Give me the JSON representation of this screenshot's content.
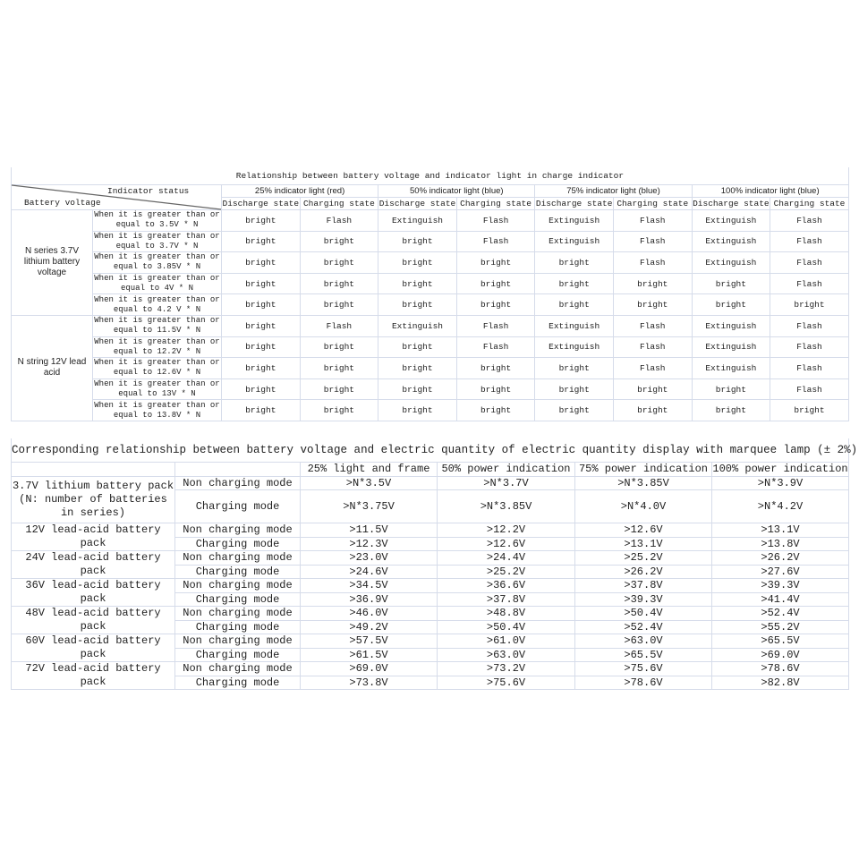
{
  "table1": {
    "title": "Relationship between battery voltage and indicator light in charge indicator",
    "corner_top": "Indicator status",
    "corner_bottom": "Battery voltage",
    "indicators": [
      "25% indicator light (red)",
      "50% indicator light (blue)",
      "75% indicator light (blue)",
      "100% indicator light (blue)"
    ],
    "states": [
      "Discharge state",
      "Charging state"
    ],
    "groups": [
      {
        "label": "N series 3.7V lithium battery voltage",
        "rows": [
          {
            "condition": "When it is greater than or equal to 3.5V * N",
            "values": [
              "bright",
              "Flash",
              "Extinguish",
              "Flash",
              "Extinguish",
              "Flash",
              "Extinguish",
              "Flash"
            ]
          },
          {
            "condition": "When it is greater than or equal to 3.7V * N",
            "values": [
              "bright",
              "bright",
              "bright",
              "Flash",
              "Extinguish",
              "Flash",
              "Extinguish",
              "Flash"
            ]
          },
          {
            "condition": "When it is greater than or equal to 3.85V * N",
            "values": [
              "bright",
              "bright",
              "bright",
              "bright",
              "bright",
              "Flash",
              "Extinguish",
              "Flash"
            ]
          },
          {
            "condition": "When it is greater than or equal to 4V * N",
            "values": [
              "bright",
              "bright",
              "bright",
              "bright",
              "bright",
              "bright",
              "bright",
              "Flash"
            ]
          },
          {
            "condition": "When it is greater than or equal to 4.2 V * N",
            "values": [
              "bright",
              "bright",
              "bright",
              "bright",
              "bright",
              "bright",
              "bright",
              "bright"
            ]
          }
        ]
      },
      {
        "label": "N string 12V lead acid",
        "rows": [
          {
            "condition": "When it is greater than or equal to 11.5V * N",
            "values": [
              "bright",
              "Flash",
              "Extinguish",
              "Flash",
              "Extinguish",
              "Flash",
              "Extinguish",
              "Flash"
            ]
          },
          {
            "condition": "When it is greater than or equal to 12.2V * N",
            "values": [
              "bright",
              "bright",
              "bright",
              "Flash",
              "Extinguish",
              "Flash",
              "Extinguish",
              "Flash"
            ]
          },
          {
            "condition": "When it is greater than or equal to 12.6V * N",
            "values": [
              "bright",
              "bright",
              "bright",
              "bright",
              "bright",
              "Flash",
              "Extinguish",
              "Flash"
            ]
          },
          {
            "condition": "When it is greater than or equal to 13V * N",
            "values": [
              "bright",
              "bright",
              "bright",
              "bright",
              "bright",
              "bright",
              "bright",
              "Flash"
            ]
          },
          {
            "condition": "When it is greater than or equal to 13.8V * N",
            "values": [
              "bright",
              "bright",
              "bright",
              "bright",
              "bright",
              "bright",
              "bright",
              "bright"
            ]
          }
        ]
      }
    ]
  },
  "table2": {
    "title": "Corresponding relationship between battery voltage and electric quantity of electric quantity display with marquee lamp (± 2%)",
    "headers": [
      "",
      "",
      "25% light and frame",
      "50% power indication",
      "75% power indication",
      "100% power indication"
    ],
    "groups": [
      {
        "label": "3.7V lithium battery pack (N: number of batteries in series)",
        "rows": [
          {
            "mode": "Non charging mode",
            "values": [
              ">N*3.5V",
              ">N*3.7V",
              ">N*3.85V",
              ">N*3.9V"
            ]
          },
          {
            "mode": "Charging mode",
            "values": [
              ">N*3.75V",
              ">N*3.85V",
              ">N*4.0V",
              ">N*4.2V"
            ]
          }
        ]
      },
      {
        "label": "12V lead-acid battery pack",
        "rows": [
          {
            "mode": "Non charging mode",
            "values": [
              ">11.5V",
              ">12.2V",
              ">12.6V",
              ">13.1V"
            ]
          },
          {
            "mode": "Charging mode",
            "values": [
              ">12.3V",
              ">12.6V",
              ">13.1V",
              ">13.8V"
            ]
          }
        ]
      },
      {
        "label": "24V lead-acid battery pack",
        "rows": [
          {
            "mode": "Non charging mode",
            "values": [
              ">23.0V",
              ">24.4V",
              ">25.2V",
              ">26.2V"
            ]
          },
          {
            "mode": "Charging mode",
            "values": [
              ">24.6V",
              ">25.2V",
              ">26.2V",
              ">27.6V"
            ]
          }
        ]
      },
      {
        "label": "36V lead-acid battery pack",
        "rows": [
          {
            "mode": "Non charging mode",
            "values": [
              ">34.5V",
              ">36.6V",
              ">37.8V",
              ">39.3V"
            ]
          },
          {
            "mode": "Charging mode",
            "values": [
              ">36.9V",
              ">37.8V",
              ">39.3V",
              ">41.4V"
            ]
          }
        ]
      },
      {
        "label": "48V lead-acid battery pack",
        "rows": [
          {
            "mode": "Non charging mode",
            "values": [
              ">46.0V",
              ">48.8V",
              ">50.4V",
              ">52.4V"
            ]
          },
          {
            "mode": "Charging mode",
            "values": [
              ">49.2V",
              ">50.4V",
              ">52.4V",
              ">55.2V"
            ]
          }
        ]
      },
      {
        "label": "60V lead-acid battery pack",
        "rows": [
          {
            "mode": "Non charging mode",
            "values": [
              ">57.5V",
              ">61.0V",
              ">63.0V",
              ">65.5V"
            ]
          },
          {
            "mode": "Charging mode",
            "values": [
              ">61.5V",
              ">63.0V",
              ">65.5V",
              ">69.0V"
            ]
          }
        ]
      },
      {
        "label": "72V lead-acid battery pack",
        "rows": [
          {
            "mode": "Non charging mode",
            "values": [
              ">69.0V",
              ">73.2V",
              ">75.6V",
              ">78.6V"
            ]
          },
          {
            "mode": "Charging mode",
            "values": [
              ">73.8V",
              ">75.6V",
              ">78.6V",
              ">82.8V"
            ]
          }
        ]
      }
    ]
  }
}
